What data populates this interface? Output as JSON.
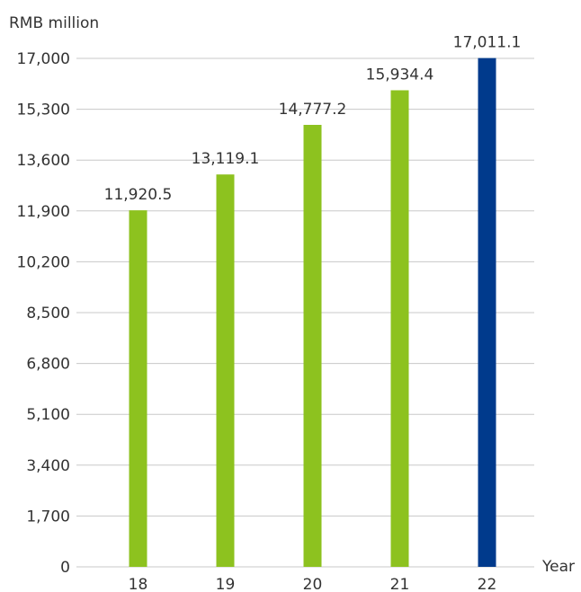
{
  "chart_data": {
    "type": "bar",
    "categories": [
      "18",
      "19",
      "20",
      "21",
      "22"
    ],
    "values": [
      11920.5,
      13119.1,
      14777.2,
      15934.4,
      17011.1
    ],
    "value_labels": [
      "11,920.5",
      "13,119.1",
      "14,777.2",
      "15,934.4",
      "17,011.1"
    ],
    "bar_colors": [
      "#8dc21f",
      "#8dc21f",
      "#8dc21f",
      "#8dc21f",
      "#003a8c"
    ],
    "ylabel": "RMB million",
    "xlabel": "Year",
    "ylim": [
      0,
      17000
    ],
    "yticks": [
      0,
      1700,
      3400,
      5100,
      6800,
      8500,
      10200,
      11900,
      13600,
      15300,
      17000
    ],
    "ytick_labels": [
      "0",
      "1,700",
      "3,400",
      "5,100",
      "6,800",
      "8,500",
      "10,200",
      "11,900",
      "13,600",
      "15,300",
      "17,000"
    ],
    "grid": true,
    "grid_color": "#c8c8c8"
  }
}
